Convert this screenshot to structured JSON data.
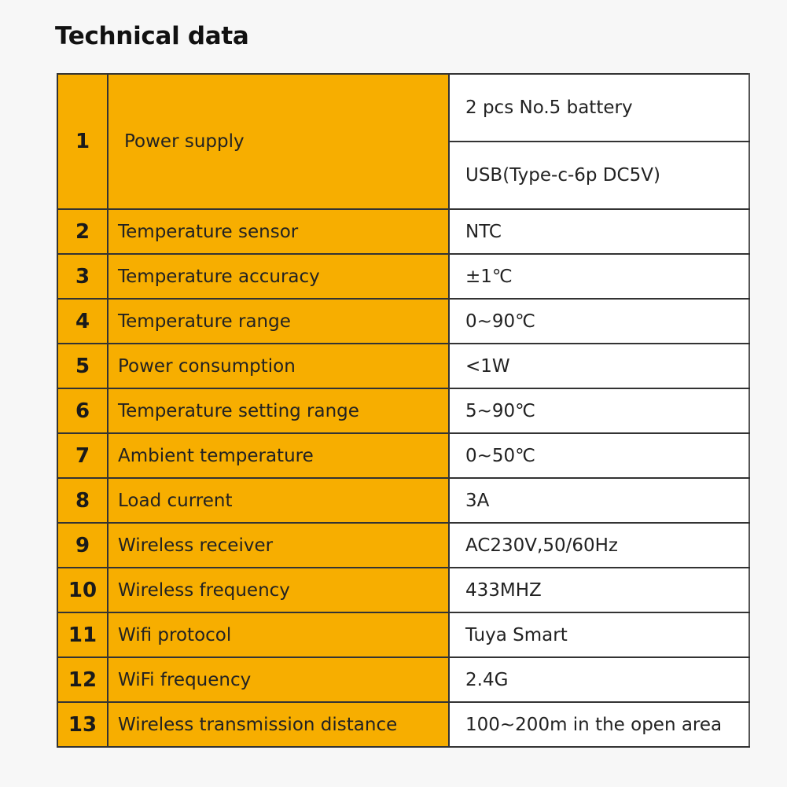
{
  "title": "Technical data",
  "colors": {
    "header_fill": "#F7AE00",
    "value_fill": "#FFFFFF",
    "border": "#333333"
  },
  "rows": [
    {
      "num": "1",
      "label": "Power supply",
      "values": [
        "2 pcs No.5 battery",
        "USB(Type-c-6p DC5V)"
      ]
    },
    {
      "num": "2",
      "label": "Temperature sensor",
      "values": [
        "NTC"
      ]
    },
    {
      "num": "3",
      "label": "Temperature accuracy",
      "values": [
        "±1℃"
      ]
    },
    {
      "num": "4",
      "label": "Temperature range",
      "values": [
        "0~90℃"
      ]
    },
    {
      "num": "5",
      "label": "Power consumption",
      "values": [
        "<1W"
      ]
    },
    {
      "num": "6",
      "label": "Temperature setting range",
      "values": [
        "5~90℃"
      ]
    },
    {
      "num": "7",
      "label": "Ambient temperature",
      "values": [
        "0~50℃"
      ]
    },
    {
      "num": "8",
      "label": "Load current",
      "values": [
        "3A"
      ]
    },
    {
      "num": "9",
      "label": "Wireless receiver",
      "values": [
        "AC230V,50/60Hz"
      ]
    },
    {
      "num": "10",
      "label": "Wireless frequency",
      "values": [
        "433MHZ"
      ]
    },
    {
      "num": "11",
      "label": "Wifi protocol",
      "values": [
        "Tuya Smart"
      ]
    },
    {
      "num": "12",
      "label": "WiFi frequency",
      "values": [
        "2.4G"
      ]
    },
    {
      "num": "13",
      "label": "Wireless transmission distance",
      "values": [
        "100~200m in the open area"
      ]
    }
  ]
}
